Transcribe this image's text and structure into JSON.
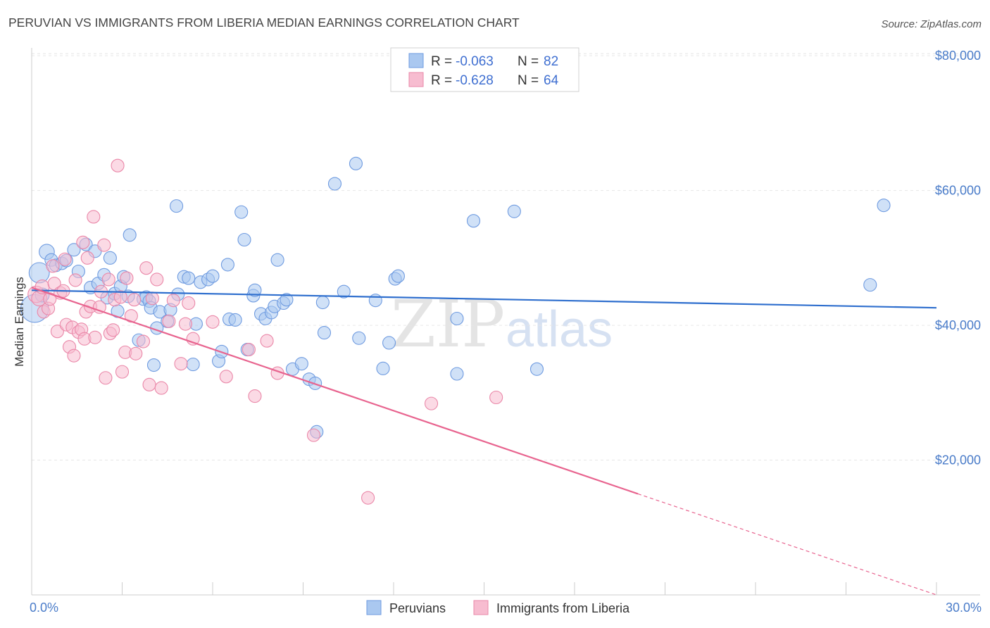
{
  "chart_data": {
    "type": "scatter",
    "title": "PERUVIAN VS IMMIGRANTS FROM LIBERIA MEDIAN EARNINGS CORRELATION CHART",
    "source": "Source: ZipAtlas.com",
    "xlabel": "",
    "ylabel": "Median Earnings",
    "xlim": [
      0,
      30
    ],
    "ylim": [
      0,
      82000
    ],
    "x_tick_labels": [
      "0.0%",
      "30.0%"
    ],
    "y_ticks": [
      20000,
      40000,
      60000,
      80000
    ],
    "y_tick_labels": [
      "$20,000",
      "$40,000",
      "$60,000",
      "$80,000"
    ],
    "grid": true,
    "watermark": {
      "zip": "ZIP",
      "atlas": "atlas"
    },
    "stats_legend": [
      {
        "r_label": "R = ",
        "r_value": "-0.063",
        "n_label": "N = ",
        "n_value": "82"
      },
      {
        "r_label": "R = ",
        "r_value": "-0.628",
        "n_label": "N = ",
        "n_value": "64"
      }
    ],
    "legend": [
      "Peruvians",
      "Immigrants from Liberia"
    ],
    "colors": {
      "peruvians_fill": "#aac8f0",
      "peruvians_stroke": "#6f9be0",
      "peruvians_line": "#2f6fce",
      "liberia_fill": "#f7bcd0",
      "liberia_stroke": "#ea87a8",
      "liberia_line": "#e8648f"
    },
    "series": [
      {
        "name": "Peruvians",
        "trend": {
          "x": [
            0,
            30
          ],
          "y": [
            45200,
            42600
          ]
        },
        "points": [
          {
            "x": 0.1,
            "y": 42500,
            "s": 2.2
          },
          {
            "x": 0.25,
            "y": 47800,
            "s": 1.6
          },
          {
            "x": 0.35,
            "y": 44500,
            "s": 1.1
          },
          {
            "x": 0.5,
            "y": 50900,
            "s": 1.2
          },
          {
            "x": 0.65,
            "y": 49700,
            "s": 1.0
          },
          {
            "x": 0.8,
            "y": 48900,
            "s": 1.0
          },
          {
            "x": 1.0,
            "y": 49200,
            "s": 1.0
          },
          {
            "x": 1.4,
            "y": 51200,
            "s": 1.0
          },
          {
            "x": 1.55,
            "y": 48000,
            "s": 1.0
          },
          {
            "x": 1.8,
            "y": 52000,
            "s": 1.0
          },
          {
            "x": 1.95,
            "y": 45600,
            "s": 1.0
          },
          {
            "x": 2.1,
            "y": 51000,
            "s": 1.0
          },
          {
            "x": 2.2,
            "y": 46200,
            "s": 1.0
          },
          {
            "x": 2.4,
            "y": 47500,
            "s": 1.0
          },
          {
            "x": 2.5,
            "y": 44100,
            "s": 1.0
          },
          {
            "x": 2.6,
            "y": 50000,
            "s": 1.0
          },
          {
            "x": 2.75,
            "y": 44700,
            "s": 1.0
          },
          {
            "x": 2.85,
            "y": 42100,
            "s": 1.0
          },
          {
            "x": 2.95,
            "y": 45800,
            "s": 1.0
          },
          {
            "x": 3.05,
            "y": 47200,
            "s": 1.0
          },
          {
            "x": 3.2,
            "y": 44300,
            "s": 1.0
          },
          {
            "x": 3.25,
            "y": 53400,
            "s": 1.0
          },
          {
            "x": 3.55,
            "y": 37800,
            "s": 1.0
          },
          {
            "x": 3.7,
            "y": 43900,
            "s": 1.0
          },
          {
            "x": 3.8,
            "y": 44200,
            "s": 1.0
          },
          {
            "x": 3.9,
            "y": 43600,
            "s": 1.0
          },
          {
            "x": 3.95,
            "y": 42600,
            "s": 1.0
          },
          {
            "x": 4.05,
            "y": 34100,
            "s": 1.0
          },
          {
            "x": 4.15,
            "y": 39600,
            "s": 1.0
          },
          {
            "x": 4.25,
            "y": 42000,
            "s": 1.0
          },
          {
            "x": 4.5,
            "y": 40600,
            "s": 1.0
          },
          {
            "x": 4.6,
            "y": 42300,
            "s": 1.0
          },
          {
            "x": 4.8,
            "y": 57700,
            "s": 1.0
          },
          {
            "x": 4.85,
            "y": 44600,
            "s": 1.0
          },
          {
            "x": 5.05,
            "y": 47200,
            "s": 1.0
          },
          {
            "x": 5.2,
            "y": 47000,
            "s": 1.0
          },
          {
            "x": 5.35,
            "y": 34200,
            "s": 1.0
          },
          {
            "x": 5.45,
            "y": 40200,
            "s": 1.0
          },
          {
            "x": 5.6,
            "y": 46400,
            "s": 1.0
          },
          {
            "x": 5.85,
            "y": 46800,
            "s": 1.0
          },
          {
            "x": 6.0,
            "y": 47300,
            "s": 1.0
          },
          {
            "x": 6.2,
            "y": 34700,
            "s": 1.0
          },
          {
            "x": 6.3,
            "y": 36100,
            "s": 1.0
          },
          {
            "x": 6.5,
            "y": 49000,
            "s": 1.0
          },
          {
            "x": 6.55,
            "y": 40900,
            "s": 1.0
          },
          {
            "x": 6.75,
            "y": 40800,
            "s": 1.0
          },
          {
            "x": 6.95,
            "y": 56800,
            "s": 1.0
          },
          {
            "x": 7.05,
            "y": 52700,
            "s": 1.0
          },
          {
            "x": 7.15,
            "y": 36400,
            "s": 1.0
          },
          {
            "x": 7.35,
            "y": 44400,
            "s": 1.0
          },
          {
            "x": 7.4,
            "y": 45200,
            "s": 1.0
          },
          {
            "x": 7.6,
            "y": 41700,
            "s": 1.0
          },
          {
            "x": 7.75,
            "y": 41000,
            "s": 1.0
          },
          {
            "x": 7.95,
            "y": 41900,
            "s": 1.0
          },
          {
            "x": 8.05,
            "y": 42800,
            "s": 1.0
          },
          {
            "x": 8.15,
            "y": 49700,
            "s": 1.0
          },
          {
            "x": 8.35,
            "y": 43300,
            "s": 1.0
          },
          {
            "x": 8.45,
            "y": 43800,
            "s": 1.0
          },
          {
            "x": 8.65,
            "y": 33500,
            "s": 1.0
          },
          {
            "x": 8.95,
            "y": 34300,
            "s": 1.0
          },
          {
            "x": 9.2,
            "y": 32000,
            "s": 1.0
          },
          {
            "x": 9.4,
            "y": 31400,
            "s": 1.0
          },
          {
            "x": 9.45,
            "y": 24200,
            "s": 1.0
          },
          {
            "x": 9.65,
            "y": 43400,
            "s": 1.0
          },
          {
            "x": 9.7,
            "y": 38900,
            "s": 1.0
          },
          {
            "x": 10.05,
            "y": 61000,
            "s": 1.0
          },
          {
            "x": 10.35,
            "y": 45000,
            "s": 1.0
          },
          {
            "x": 10.75,
            "y": 64000,
            "s": 1.0
          },
          {
            "x": 10.85,
            "y": 38100,
            "s": 1.0
          },
          {
            "x": 11.4,
            "y": 43700,
            "s": 1.0
          },
          {
            "x": 11.65,
            "y": 33600,
            "s": 1.0
          },
          {
            "x": 11.85,
            "y": 37400,
            "s": 1.0
          },
          {
            "x": 12.05,
            "y": 46900,
            "s": 1.0
          },
          {
            "x": 12.15,
            "y": 47300,
            "s": 1.0
          },
          {
            "x": 14.1,
            "y": 41000,
            "s": 1.0
          },
          {
            "x": 14.1,
            "y": 32800,
            "s": 1.0
          },
          {
            "x": 14.65,
            "y": 55500,
            "s": 1.0
          },
          {
            "x": 16.0,
            "y": 56900,
            "s": 1.0
          },
          {
            "x": 16.75,
            "y": 33500,
            "s": 1.0
          },
          {
            "x": 27.8,
            "y": 46000,
            "s": 1.0
          },
          {
            "x": 28.25,
            "y": 57800,
            "s": 1.0
          },
          {
            "x": 1.15,
            "y": 49600,
            "s": 1.0
          }
        ]
      },
      {
        "name": "Immigrants from Liberia",
        "trend": {
          "x": [
            0,
            20.1
          ],
          "y": [
            45600,
            15000
          ]
        },
        "trend_dashed": {
          "x": [
            20.1,
            30
          ],
          "y": [
            15000,
            0
          ]
        },
        "points": [
          {
            "x": 0.15,
            "y": 44600,
            "s": 1.3
          },
          {
            "x": 0.25,
            "y": 44000,
            "s": 1.2
          },
          {
            "x": 0.35,
            "y": 45700,
            "s": 1.1
          },
          {
            "x": 0.4,
            "y": 42000,
            "s": 1.0
          },
          {
            "x": 0.55,
            "y": 42500,
            "s": 1.0
          },
          {
            "x": 0.6,
            "y": 43900,
            "s": 1.0
          },
          {
            "x": 0.7,
            "y": 48800,
            "s": 1.0
          },
          {
            "x": 0.75,
            "y": 46200,
            "s": 1.0
          },
          {
            "x": 0.85,
            "y": 39100,
            "s": 1.0
          },
          {
            "x": 0.95,
            "y": 44800,
            "s": 1.0
          },
          {
            "x": 1.05,
            "y": 45100,
            "s": 1.0
          },
          {
            "x": 1.1,
            "y": 49800,
            "s": 1.0
          },
          {
            "x": 1.15,
            "y": 40100,
            "s": 1.0
          },
          {
            "x": 1.25,
            "y": 36800,
            "s": 1.0
          },
          {
            "x": 1.35,
            "y": 39700,
            "s": 1.0
          },
          {
            "x": 1.4,
            "y": 35500,
            "s": 1.0
          },
          {
            "x": 1.45,
            "y": 46700,
            "s": 1.0
          },
          {
            "x": 1.55,
            "y": 39000,
            "s": 1.0
          },
          {
            "x": 1.65,
            "y": 39400,
            "s": 1.0
          },
          {
            "x": 1.7,
            "y": 52300,
            "s": 1.0
          },
          {
            "x": 1.75,
            "y": 38000,
            "s": 1.0
          },
          {
            "x": 1.8,
            "y": 42000,
            "s": 1.0
          },
          {
            "x": 1.85,
            "y": 50000,
            "s": 1.0
          },
          {
            "x": 1.95,
            "y": 42800,
            "s": 1.0
          },
          {
            "x": 2.05,
            "y": 56100,
            "s": 1.0
          },
          {
            "x": 2.1,
            "y": 38200,
            "s": 1.0
          },
          {
            "x": 2.25,
            "y": 42700,
            "s": 1.0
          },
          {
            "x": 2.3,
            "y": 45000,
            "s": 1.0
          },
          {
            "x": 2.4,
            "y": 51900,
            "s": 1.0
          },
          {
            "x": 2.45,
            "y": 32200,
            "s": 1.0
          },
          {
            "x": 2.55,
            "y": 46800,
            "s": 1.0
          },
          {
            "x": 2.6,
            "y": 38800,
            "s": 1.0
          },
          {
            "x": 2.7,
            "y": 39300,
            "s": 1.0
          },
          {
            "x": 2.75,
            "y": 43800,
            "s": 1.0
          },
          {
            "x": 2.85,
            "y": 63700,
            "s": 1.0
          },
          {
            "x": 2.95,
            "y": 44200,
            "s": 1.0
          },
          {
            "x": 3.0,
            "y": 33100,
            "s": 1.0
          },
          {
            "x": 3.1,
            "y": 36000,
            "s": 1.0
          },
          {
            "x": 3.15,
            "y": 47000,
            "s": 1.0
          },
          {
            "x": 3.3,
            "y": 41400,
            "s": 1.0
          },
          {
            "x": 3.4,
            "y": 43800,
            "s": 1.0
          },
          {
            "x": 3.45,
            "y": 35800,
            "s": 1.0
          },
          {
            "x": 3.7,
            "y": 37600,
            "s": 1.0
          },
          {
            "x": 3.8,
            "y": 48500,
            "s": 1.0
          },
          {
            "x": 3.9,
            "y": 31200,
            "s": 1.0
          },
          {
            "x": 4.0,
            "y": 44000,
            "s": 1.0
          },
          {
            "x": 4.15,
            "y": 46800,
            "s": 1.0
          },
          {
            "x": 4.3,
            "y": 30700,
            "s": 1.0
          },
          {
            "x": 4.55,
            "y": 40600,
            "s": 1.0
          },
          {
            "x": 4.7,
            "y": 43700,
            "s": 1.0
          },
          {
            "x": 4.95,
            "y": 34300,
            "s": 1.0
          },
          {
            "x": 5.1,
            "y": 40200,
            "s": 1.0
          },
          {
            "x": 5.2,
            "y": 43300,
            "s": 1.0
          },
          {
            "x": 5.35,
            "y": 38000,
            "s": 1.0
          },
          {
            "x": 6.0,
            "y": 40500,
            "s": 1.0
          },
          {
            "x": 6.45,
            "y": 32400,
            "s": 1.0
          },
          {
            "x": 7.2,
            "y": 36400,
            "s": 1.0
          },
          {
            "x": 7.4,
            "y": 29500,
            "s": 1.0
          },
          {
            "x": 7.8,
            "y": 37700,
            "s": 1.0
          },
          {
            "x": 8.15,
            "y": 32900,
            "s": 1.0
          },
          {
            "x": 9.35,
            "y": 23700,
            "s": 1.0
          },
          {
            "x": 11.15,
            "y": 14400,
            "s": 1.0
          },
          {
            "x": 13.25,
            "y": 28400,
            "s": 1.0
          },
          {
            "x": 15.4,
            "y": 29300,
            "s": 1.0
          }
        ]
      }
    ]
  }
}
